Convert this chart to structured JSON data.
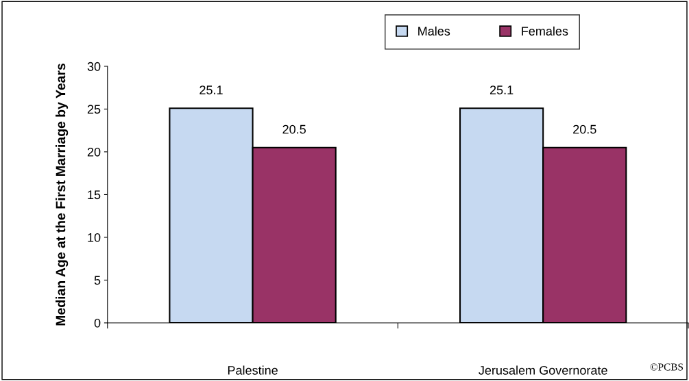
{
  "chart_data": {
    "type": "bar",
    "ylabel": "Median Age at the First Marriage by Years",
    "categories": [
      "Palestine",
      "Jerusalem Governorate"
    ],
    "series": [
      {
        "name": "Males",
        "color": "#c6d9f1",
        "values": [
          25.1,
          25.1
        ]
      },
      {
        "name": "Females",
        "color": "#993366",
        "values": [
          20.5,
          20.5
        ]
      }
    ],
    "ylim": [
      0,
      30
    ],
    "yticks": [
      0,
      5,
      10,
      15,
      20,
      25,
      30
    ],
    "grid": false,
    "legend": "top",
    "data_labels": true,
    "annotations": [
      "©PCBS"
    ]
  }
}
